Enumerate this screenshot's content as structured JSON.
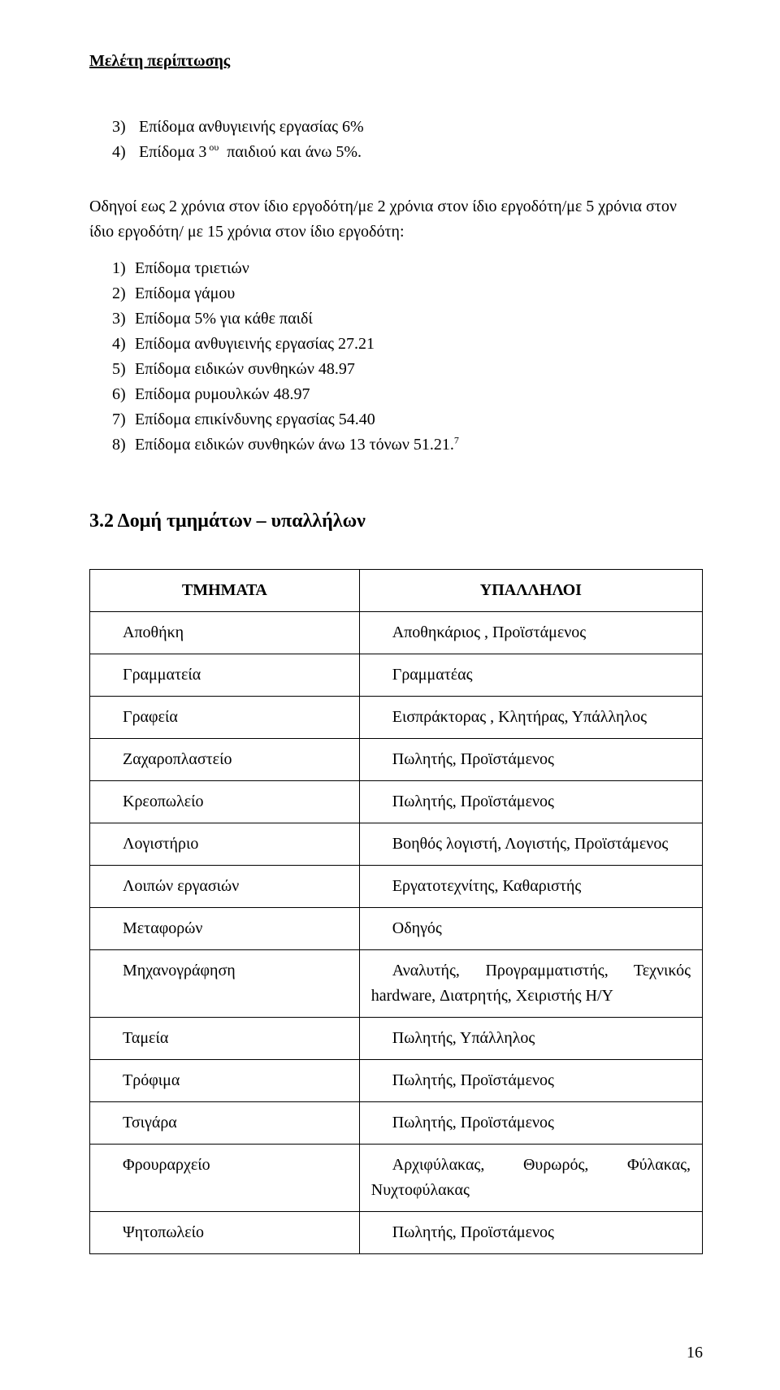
{
  "header": "Μελέτη περίπτωσης",
  "list1": [
    {
      "n": "3)",
      "text": "Επίδομα ανθυγιεινής εργασίας 6%"
    },
    {
      "n": "4)",
      "prefix": "Επίδομα 3",
      "sup": "ου",
      "suffix": " παιδιού και άνω 5%."
    }
  ],
  "para": "Οδηγοί εως 2 χρόνια στον ίδιο εργοδότη/με 2 χρόνια στον ίδιο εργοδότη/με 5 χρόνια στον ίδιο εργοδότη/ με 15 χρόνια στον ίδιο εργοδότη:",
  "list2": [
    {
      "n": "1)",
      "text": "Επίδομα τριετιών"
    },
    {
      "n": "2)",
      "text": "Επίδομα γάμου"
    },
    {
      "n": "3)",
      "text": "Επίδομα 5% για κάθε παιδί"
    },
    {
      "n": "4)",
      "text": "Επίδομα ανθυγιεινής εργασίας 27.21"
    },
    {
      "n": "5)",
      "text": "Επίδομα ειδικών συνθηκών 48.97"
    },
    {
      "n": "6)",
      "text": "Επίδομα ρυμουλκών 48.97"
    },
    {
      "n": "7)",
      "text": "Επίδομα επικίνδυνης εργασίας 54.40"
    },
    {
      "n": "8)",
      "text": "Επίδομα ειδικών συνθηκών άνω 13 τόνων 51.21.",
      "sup": "7"
    }
  ],
  "h2": "3.2 Δομή τμημάτων – υπαλλήλων",
  "table": {
    "head": [
      "ΤΜΗΜΑΤΑ",
      "ΥΠΑΛΛΗΛΟΙ"
    ],
    "rows": [
      {
        "l": "Αποθήκη",
        "r": "Αποθηκάριος , Προϊστάμενος"
      },
      {
        "l": "Γραμματεία",
        "r": "Γραμματέας"
      },
      {
        "l": "Γραφεία",
        "r": "Εισπράκτορας , Κλητήρας, Υπάλληλος"
      },
      {
        "l": "Ζαχαροπλαστείο",
        "r": "Πωλητής, Προϊστάμενος"
      },
      {
        "l": "Κρεοπωλείο",
        "r": "Πωλητής, Προϊστάμενος"
      },
      {
        "l": "Λογιστήριο",
        "r": "Βοηθός λογιστή, Λογιστής, Προϊστάμενος"
      },
      {
        "l": "Λοιπών εργασιών",
        "r": "Εργατοτεχνίτης, Καθαριστής"
      },
      {
        "l": "Μεταφορών",
        "r": "Οδηγός"
      },
      {
        "l": "Μηχανογράφηση",
        "r_indent": "Αναλυτής, Προγραμματιστής, Τεχνικός",
        "r2": "hardware, Διατρητής, Χειριστής Η/Υ"
      },
      {
        "l": "Ταμεία",
        "r": "Πωλητής, Υπάλληλος"
      },
      {
        "l": "Τρόφιμα",
        "r": "Πωλητής, Προϊστάμενος"
      },
      {
        "l": "Τσιγάρα",
        "r": "Πωλητής, Προϊστάμενος"
      },
      {
        "l": "Φρουραρχείο",
        "r_indent": "Αρχιφύλακας,    Θυρωρός,    Φύλακας,",
        "r2": "Νυχτοφύλακας"
      },
      {
        "l": "Ψητοπωλείο",
        "r": "Πωλητής, Προϊστάμενος"
      }
    ]
  },
  "pagenum": "16"
}
